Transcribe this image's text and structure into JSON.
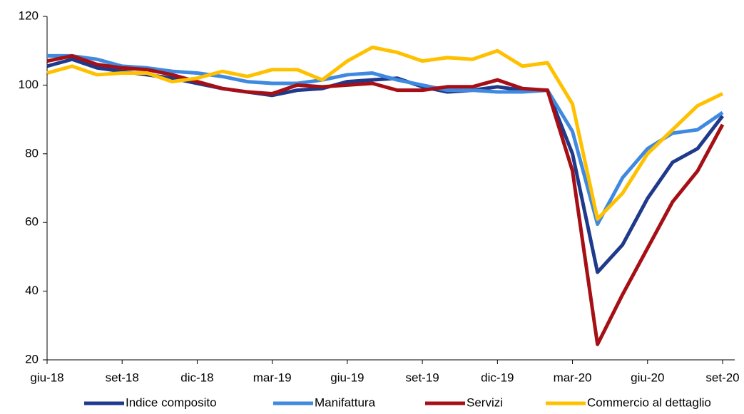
{
  "chart_data": {
    "type": "line",
    "categories": [
      "giu-18",
      null,
      null,
      "set-18",
      null,
      null,
      "dic-18",
      null,
      null,
      "mar-19",
      null,
      null,
      "giu-19",
      null,
      null,
      "set-19",
      null,
      null,
      "dic-19",
      null,
      null,
      "mar-20",
      null,
      null,
      "giu-20",
      null,
      null,
      "set-20"
    ],
    "series": [
      {
        "name": "Indice composito",
        "color": "#1f3a8a",
        "values": [
          105.5,
          107.5,
          105,
          104,
          103,
          102,
          100.5,
          99,
          98,
          97,
          98.5,
          99,
          101,
          101.5,
          102,
          99.5,
          98,
          98.5,
          99.5,
          98.5,
          98.5,
          80,
          45.5,
          53.5,
          67,
          77.5,
          81.5,
          91
        ]
      },
      {
        "name": "Manifattura",
        "color": "#3f8ae0",
        "values": [
          108.5,
          108.5,
          107.5,
          105.5,
          105,
          104,
          103.5,
          102.5,
          101,
          100.5,
          100.5,
          101.5,
          103,
          103.5,
          101.5,
          100,
          98.5,
          98.5,
          98,
          98,
          98.5,
          86.5,
          59.5,
          73,
          81.5,
          86,
          87,
          92
        ]
      },
      {
        "name": "Servizi",
        "color": "#a50f15",
        "values": [
          107,
          108.5,
          106,
          105,
          104.5,
          103,
          101,
          99,
          98,
          97.5,
          100,
          99.5,
          100,
          100.5,
          98.5,
          98.5,
          99.5,
          99.5,
          101.5,
          99,
          98.5,
          75,
          24.5,
          39,
          52.5,
          66,
          75,
          88.5
        ]
      },
      {
        "name": "Commercio al dettaglio",
        "color": "#ffc000",
        "values": [
          103.5,
          105.5,
          103,
          103.5,
          103.5,
          101,
          102,
          104,
          102.5,
          104.5,
          104.5,
          101.5,
          107,
          111,
          109.5,
          107,
          108,
          107.5,
          110,
          105.5,
          106.5,
          94.5,
          61,
          68.5,
          80,
          87,
          94,
          97.5
        ]
      }
    ],
    "ylim": [
      20,
      120
    ],
    "yticks": [
      20,
      40,
      60,
      80,
      100,
      120
    ],
    "legend": "bottom"
  }
}
